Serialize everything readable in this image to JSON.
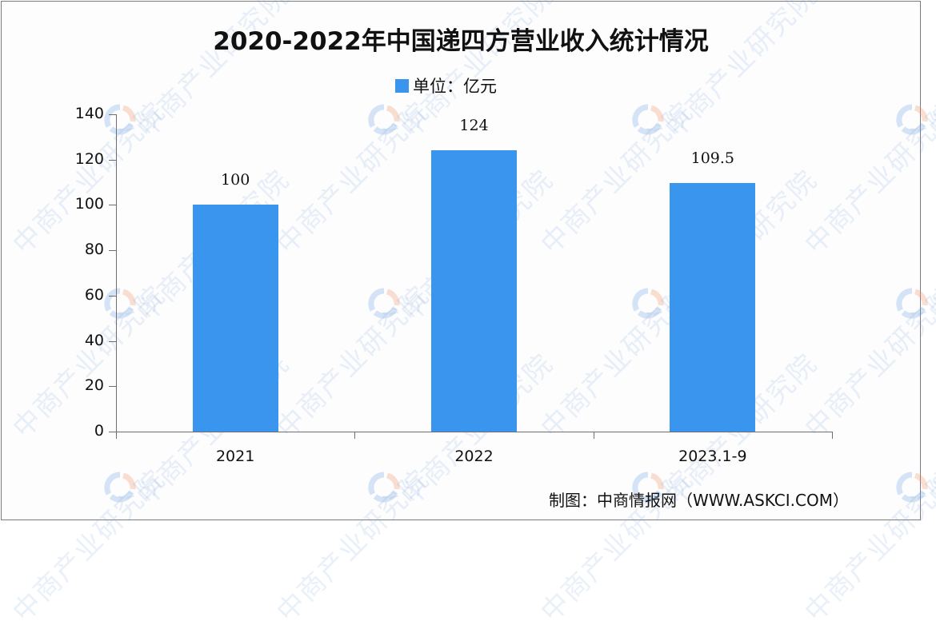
{
  "title": "2020-2022年中国递四方营业收入统计情况",
  "legend": {
    "label": "单位：亿元",
    "color": "#3a95ee"
  },
  "source": "制图：中商情报网（WWW.ASKCI.COM）",
  "watermark": {
    "text": "中商产业研究院"
  },
  "colors": {
    "bar": "#3a95ee",
    "axis": "#6d6d72",
    "frame": "#7a7a80"
  },
  "y_axis": {
    "ticks": [
      "0",
      "20",
      "40",
      "60",
      "80",
      "100",
      "120",
      "140"
    ]
  },
  "chart_data": {
    "type": "bar",
    "title": "2020-2022年中国递四方营业收入统计情况",
    "categories": [
      "2021",
      "2022",
      "2023.1-9"
    ],
    "series": [
      {
        "name": "单位：亿元",
        "values": [
          100,
          124,
          109.5
        ]
      }
    ],
    "value_labels": [
      "100",
      "124",
      "109.5"
    ],
    "xlabel": "",
    "ylabel": "",
    "unit": "亿元",
    "ylim": [
      0,
      140
    ],
    "y_ticks": [
      0,
      20,
      40,
      60,
      80,
      100,
      120,
      140
    ],
    "grid": false,
    "legend_position": "top-center",
    "source_note": "制图：中商情报网（WWW.ASKCI.COM）"
  }
}
